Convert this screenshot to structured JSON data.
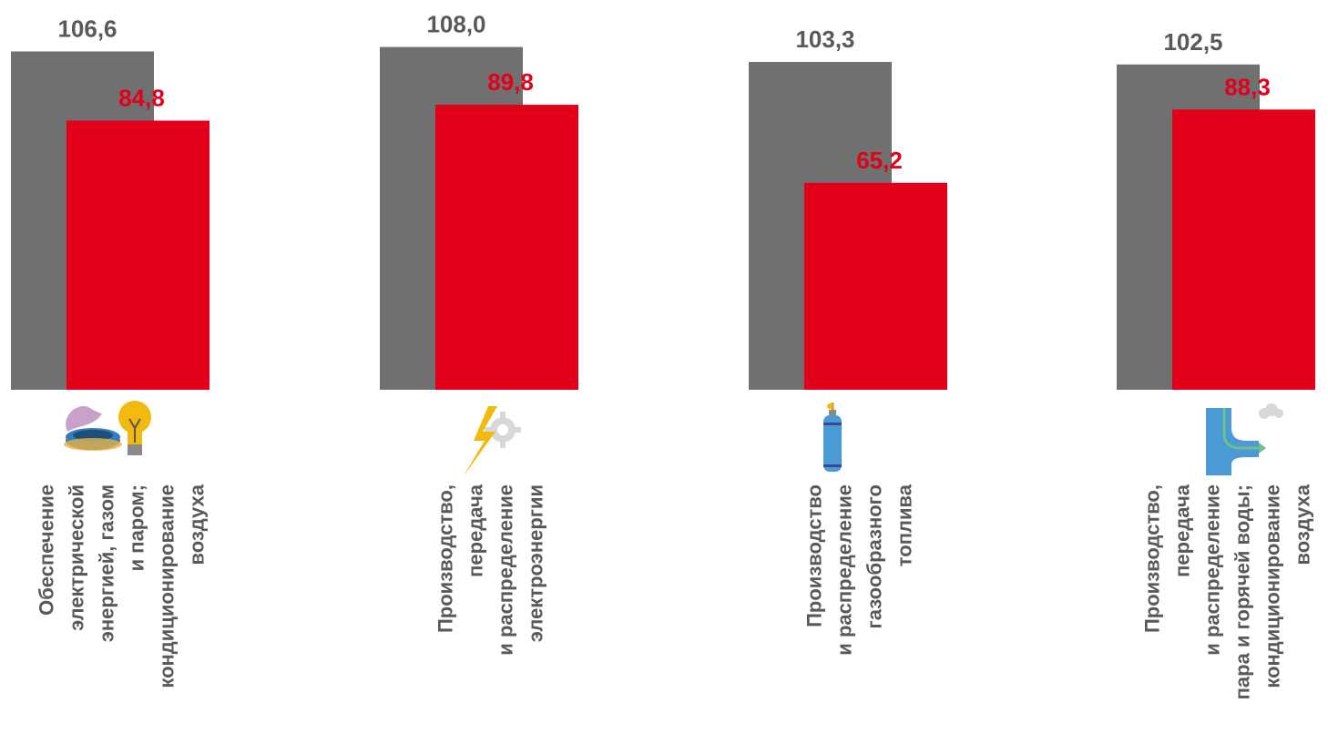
{
  "chart_data": {
    "type": "bar",
    "categories": [
      [
        "Обеспечение",
        "электрической",
        "энергией, газом",
        "и паром;",
        "кондиционирование",
        "воздуха"
      ],
      [
        "Производство,",
        "передача",
        "и распределение",
        "электроэнергии"
      ],
      [
        "Производство",
        "и распределение",
        "газообразного",
        "топлива"
      ],
      [
        "Производство,",
        "передача",
        "и распределение",
        "пара и горячей воды;",
        "кондиционирование",
        "воздуха"
      ]
    ],
    "series": [
      {
        "values": [
          106.6,
          108.0,
          103.3,
          102.5
        ],
        "labels": [
          "106,6",
          "108,0",
          "103,3",
          "102,5"
        ],
        "color": "#707070"
      },
      {
        "values": [
          84.8,
          89.8,
          65.2,
          88.3
        ],
        "labels": [
          "84,8",
          "89,8",
          "65,2",
          "88,3"
        ],
        "color": "#e2001a"
      }
    ],
    "ylim": [
      0,
      115
    ],
    "grid": false,
    "legend": "none",
    "icons": [
      "gas-burner-lightbulb-icon",
      "lightning-gear-icon",
      "gas-cylinder-icon",
      "steam-pipe-icon"
    ]
  }
}
